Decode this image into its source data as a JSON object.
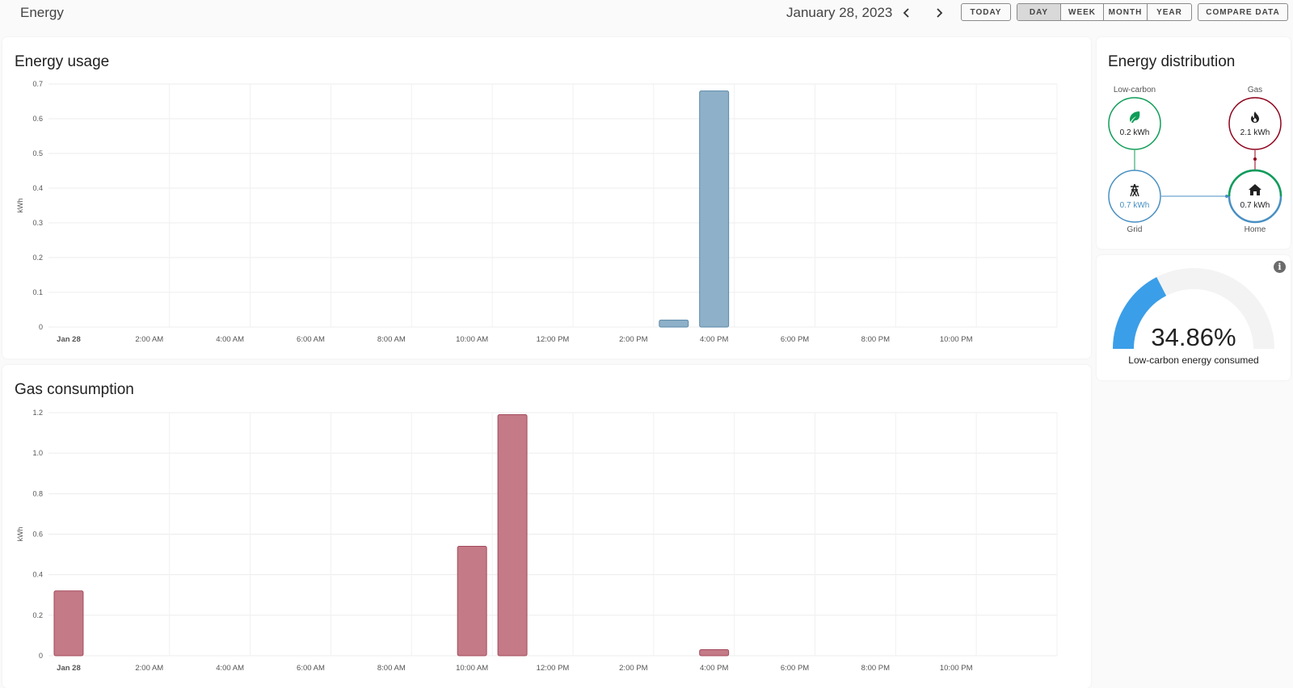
{
  "header": {
    "title": "Energy",
    "date": "January 28, 2023",
    "today_label": "TODAY",
    "periods": [
      "DAY",
      "WEEK",
      "MONTH",
      "YEAR"
    ],
    "active_period": "DAY",
    "compare_label": "COMPARE DATA"
  },
  "energy_usage": {
    "title": "Energy usage",
    "chart_data": {
      "type": "bar",
      "title": "",
      "ylabel": "kWh",
      "ylim": [
        0,
        0.7
      ],
      "yticks": [
        "0",
        "0.1",
        "0.2",
        "0.3",
        "0.4",
        "0.5",
        "0.6",
        "0.7"
      ],
      "ytick_values": [
        0,
        0.1,
        0.2,
        0.3,
        0.4,
        0.5,
        0.6,
        0.7
      ],
      "xtick_labels": [
        "Jan 28",
        "2:00 AM",
        "4:00 AM",
        "6:00 AM",
        "8:00 AM",
        "10:00 AM",
        "12:00 PM",
        "2:00 PM",
        "4:00 PM",
        "6:00 PM",
        "8:00 PM",
        "10:00 PM"
      ],
      "hours": [
        "12 AM",
        "1 AM",
        "2 AM",
        "3 AM",
        "4 AM",
        "5 AM",
        "6 AM",
        "7 AM",
        "8 AM",
        "9 AM",
        "10 AM",
        "11 AM",
        "12 PM",
        "1 PM",
        "2 PM",
        "3 PM",
        "4 PM",
        "5 PM",
        "6 PM",
        "7 PM",
        "8 PM",
        "9 PM",
        "10 PM",
        "11 PM"
      ],
      "values": [
        0,
        0,
        0,
        0,
        0,
        0,
        0,
        0,
        0,
        0,
        0,
        0,
        0,
        0,
        0,
        0.02,
        0.68,
        0,
        0,
        0,
        0,
        0,
        0,
        0
      ],
      "color": "#8eb0c8",
      "border_color": "#5a89a8"
    }
  },
  "gas_consumption": {
    "title": "Gas consumption",
    "chart_data": {
      "type": "bar",
      "title": "",
      "ylabel": "kWh",
      "ylim": [
        0,
        1.2
      ],
      "yticks": [
        "0",
        "0.2",
        "0.4",
        "0.6",
        "0.8",
        "1.0",
        "1.2"
      ],
      "ytick_values": [
        0,
        0.2,
        0.4,
        0.6,
        0.8,
        1.0,
        1.2
      ],
      "xtick_labels": [
        "Jan 28",
        "2:00 AM",
        "4:00 AM",
        "6:00 AM",
        "8:00 AM",
        "10:00 AM",
        "12:00 PM",
        "2:00 PM",
        "4:00 PM",
        "6:00 PM",
        "8:00 PM",
        "10:00 PM"
      ],
      "hours": [
        "12 AM",
        "1 AM",
        "2 AM",
        "3 AM",
        "4 AM",
        "5 AM",
        "6 AM",
        "7 AM",
        "8 AM",
        "9 AM",
        "10 AM",
        "11 AM",
        "12 PM",
        "1 PM",
        "2 PM",
        "3 PM",
        "4 PM",
        "5 PM",
        "6 PM",
        "7 PM",
        "8 PM",
        "9 PM",
        "10 PM",
        "11 PM"
      ],
      "values": [
        0.32,
        0,
        0,
        0,
        0,
        0,
        0,
        0,
        0,
        0,
        0.54,
        1.19,
        0,
        0,
        0,
        0,
        0.03,
        0,
        0,
        0,
        0,
        0,
        0,
        0
      ],
      "color": "#c47a87",
      "border_color": "#a3495a"
    }
  },
  "distribution": {
    "title": "Energy distribution",
    "low_carbon": {
      "label": "Low-carbon",
      "value": "0.2 kWh",
      "color": "#0f9d58",
      "icon": "leaf-icon"
    },
    "gas": {
      "label": "Gas",
      "value": "2.1 kWh",
      "color": "#8e021b",
      "icon": "fire-icon"
    },
    "grid": {
      "label": "Grid",
      "value": "0.7 kWh",
      "color": "#488fc2",
      "icon": "transmission-tower-icon"
    },
    "home": {
      "label": "Home",
      "value": "0.7 kWh",
      "color": "#488fc2",
      "icon": "home-icon"
    }
  },
  "gauge": {
    "value_text": "34.86%",
    "value": 34.86,
    "label": "Low-carbon energy consumed",
    "color": "#3b9ee8",
    "track_color": "#f3f3f3"
  }
}
